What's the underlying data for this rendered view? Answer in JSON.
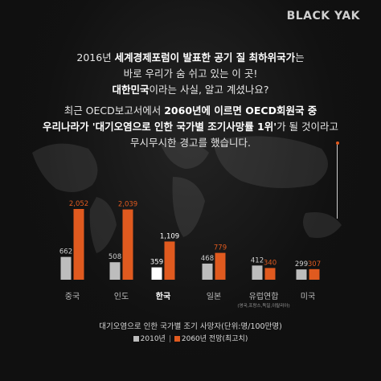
{
  "brand": {
    "logo_text": "BLACK YAK"
  },
  "intro": {
    "line1_pre": "2016년 ",
    "line1_bold": "세계경제포럼이 발표한 공기 질 최하위국가",
    "line1_post": "는",
    "line2": "바로 우리가 숨 쉬고 있는 이 곳!",
    "line3_bold": "대한민국",
    "line3_post": "이라는 사실, 알고 계셨나요?",
    "line4_pre": "최근 OECD보고서에서 ",
    "line4_bold": "2060년에 이르면 OECD회원국 중",
    "line5_bold": "우리나라가 '대기오염으로 인한 국가별 조기사망률 1위'",
    "line5_post": "가 될 것이라고",
    "line6": "무시무시한 경고를 했습니다."
  },
  "colors": {
    "series_2010": "#bdbdbd",
    "series_2060": "#e05a1f",
    "korea_2010": "#ffffff"
  },
  "chart_data": {
    "type": "bar",
    "title": "대기오염으로 인한 국가별 조기 사망자(단위:명/100만명)",
    "categories": [
      "중국",
      "인도",
      "한국",
      "일본",
      "유럽연합",
      "미국"
    ],
    "category_notes": [
      "",
      "",
      "",
      "",
      "(영국,프랑스,독일,이탈리아)",
      ""
    ],
    "series": [
      {
        "name": "2010년",
        "values": [
          662,
          508,
          359,
          468,
          412,
          299
        ]
      },
      {
        "name": "2060년 전망(최고치)",
        "values": [
          2052,
          2039,
          1109,
          779,
          340,
          307
        ]
      }
    ],
    "value_labels_2010": [
      "662",
      "508",
      "359",
      "468",
      "412",
      "299"
    ],
    "value_labels_2060": [
      "2,052",
      "2,039",
      "1,109",
      "779",
      "340",
      "307"
    ],
    "highlight_category": "한국",
    "ylim": [
      0,
      2200
    ],
    "grid": false,
    "legend_position": "bottom"
  }
}
